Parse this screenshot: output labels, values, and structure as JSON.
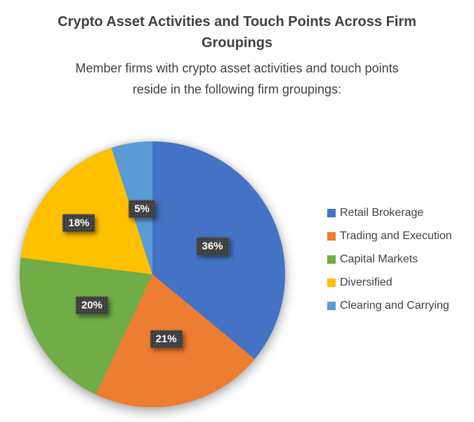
{
  "page": {
    "background_color": "#FFFFFF",
    "text_color": "#404040"
  },
  "chart_data": {
    "type": "pie",
    "title": "Crypto Asset Activities and Touch Points Across Firm Groupings",
    "subtitle": "Member firms with crypto asset activities and touch points reside in the following firm groupings:",
    "unit": "%",
    "start_angle_deg": 0,
    "direction": "clockwise",
    "legend_position": "right",
    "slices": [
      {
        "label": "Retail Brokerage",
        "value": 36,
        "color": "#4472C4",
        "data_label": "36%"
      },
      {
        "label": "Trading and Execution",
        "value": 21,
        "color": "#ED7D31",
        "data_label": "21%"
      },
      {
        "label": "Capital Markets",
        "value": 20,
        "color": "#70AD47",
        "data_label": "20%"
      },
      {
        "label": "Diversified",
        "value": 18,
        "color": "#FFC000",
        "data_label": "18%"
      },
      {
        "label": "Clearing and Carrying",
        "value": 5,
        "color": "#5B9BD5",
        "data_label": "5%"
      }
    ],
    "data_label_style": {
      "background": "#3B3B3B",
      "text_color": "#FFFFFF"
    }
  }
}
